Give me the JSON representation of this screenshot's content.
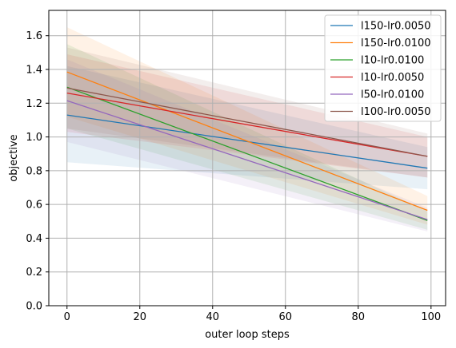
{
  "chart_data": {
    "type": "line",
    "xlabel": "outer loop steps",
    "ylabel": "objective",
    "xlim": [
      -5,
      104
    ],
    "ylim": [
      0.0,
      1.75
    ],
    "x_ticks": [
      0,
      20,
      40,
      60,
      80,
      100
    ],
    "x_tick_labels": [
      "0",
      "20",
      "40",
      "60",
      "80",
      "100"
    ],
    "y_ticks": [
      0.0,
      0.2,
      0.4,
      0.6,
      0.8,
      1.0,
      1.2,
      1.4,
      1.6
    ],
    "y_tick_labels": [
      "0.0",
      "0.2",
      "0.4",
      "0.6",
      "0.8",
      "1.0",
      "1.2",
      "1.4",
      "1.6"
    ],
    "grid": true,
    "legend_position": "top-right",
    "series": [
      {
        "name": "l150-lr0.0050",
        "color": "#1f77b4",
        "x": [
          0,
          99
        ],
        "values": [
          1.13,
          0.815
        ],
        "band_lower": [
          0.85,
          0.69
        ],
        "band_upper": [
          1.42,
          0.94
        ]
      },
      {
        "name": "l150-lr0.0100",
        "color": "#ff7f0e",
        "x": [
          0,
          99
        ],
        "values": [
          1.385,
          0.565
        ],
        "band_lower": [
          1.12,
          0.48
        ],
        "band_upper": [
          1.65,
          0.65
        ]
      },
      {
        "name": "l10-lr0.0100",
        "color": "#2ca02c",
        "x": [
          0,
          99
        ],
        "values": [
          1.295,
          0.505
        ],
        "band_lower": [
          1.05,
          0.45
        ],
        "band_upper": [
          1.55,
          0.56
        ]
      },
      {
        "name": "l10-lr0.0050",
        "color": "#d62728",
        "x": [
          0,
          99
        ],
        "values": [
          1.26,
          0.885
        ],
        "band_lower": [
          1.03,
          0.76
        ],
        "band_upper": [
          1.49,
          1.0
        ]
      },
      {
        "name": "l50-lr0.0100",
        "color": "#9467bd",
        "x": [
          0,
          99
        ],
        "values": [
          1.215,
          0.51
        ],
        "band_lower": [
          0.97,
          0.44
        ],
        "band_upper": [
          1.46,
          0.58
        ]
      },
      {
        "name": "l100-lr0.0050",
        "color": "#8c564b",
        "x": [
          0,
          99
        ],
        "values": [
          1.29,
          0.885
        ],
        "band_lower": [
          1.05,
          0.76
        ],
        "band_upper": [
          1.53,
          1.02
        ]
      }
    ]
  }
}
